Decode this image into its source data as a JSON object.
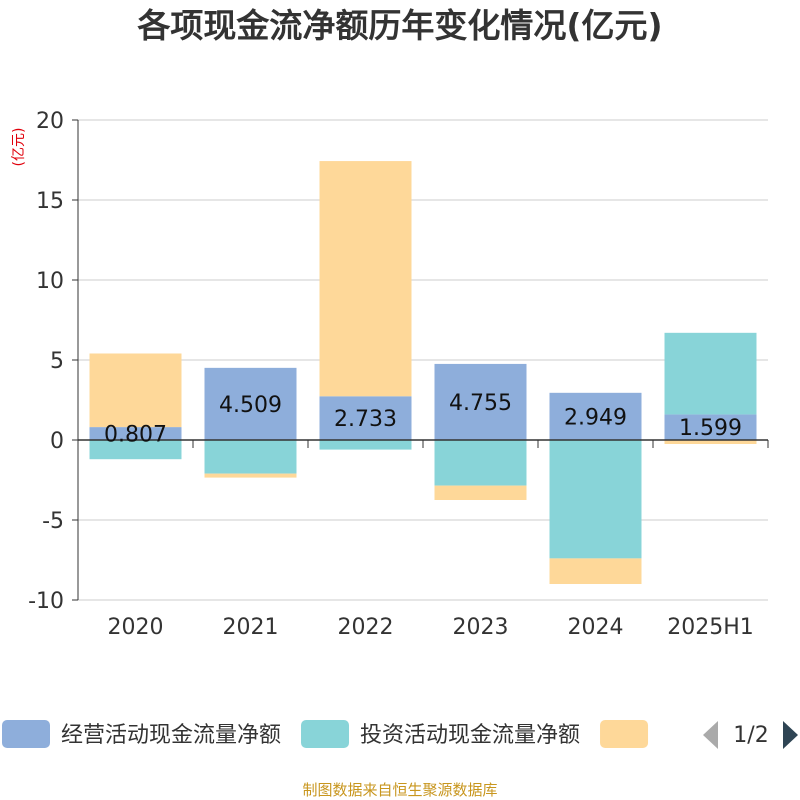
{
  "chart_data": {
    "type": "bar",
    "stacked": true,
    "title": "各项现金流净额历年变化情况(亿元)",
    "unit_label": "(亿元)",
    "categories": [
      "2020",
      "2021",
      "2022",
      "2023",
      "2024",
      "2025H1"
    ],
    "ylim": [
      -10,
      20
    ],
    "yticks": [
      20,
      15,
      10,
      5,
      0,
      -5,
      -10
    ],
    "grid": true,
    "legend_position": "bottom",
    "series": [
      {
        "name": "经营活动现金流量净额",
        "color": "#8eaedb",
        "values": [
          0.807,
          4.509,
          2.733,
          4.755,
          2.949,
          1.599
        ],
        "labels": [
          "0.807",
          "4.509",
          "2.733",
          "4.755",
          "2.949",
          "1.599"
        ]
      },
      {
        "name": "投资活动现金流量净额",
        "color": "#88d4d8",
        "values": [
          -1.2,
          -2.1,
          -0.6,
          -2.85,
          -7.4,
          5.1
        ]
      },
      {
        "name": "",
        "color": "#fed899",
        "values": [
          4.6,
          -0.25,
          14.7,
          -0.9,
          -1.6,
          -0.25
        ]
      }
    ]
  },
  "legend": {
    "pager": "1/2",
    "prev_icon": "triangle-left-icon",
    "next_icon": "triangle-right-icon"
  },
  "footer": {
    "source": "制图数据来自恒生聚源数据库"
  }
}
